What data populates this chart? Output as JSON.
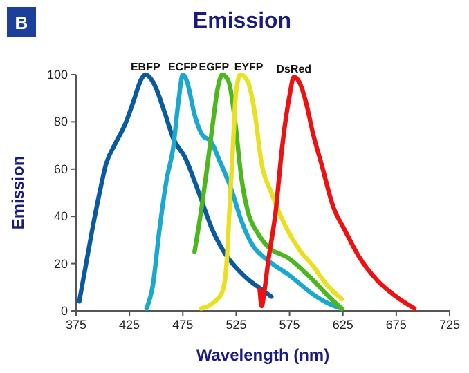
{
  "chart_data": {
    "type": "line",
    "title": "Emission",
    "xlabel": "Wavelength (nm)",
    "ylabel": "Emission",
    "annotations": [
      "B"
    ],
    "xlim": [
      375,
      725
    ],
    "xticks": [
      375,
      425,
      475,
      525,
      575,
      625,
      675,
      725
    ],
    "ylim": [
      0,
      100
    ],
    "yticks": [
      0,
      20,
      40,
      60,
      80,
      100
    ],
    "grid": false,
    "marker": "none",
    "line_style": "solid",
    "series": [
      {
        "name": "EBFP",
        "color": "#0a5aa0",
        "x": [
          378,
          384,
          390,
          397,
          403,
          412,
          421,
          429,
          436,
          440,
          447,
          458,
          466,
          477,
          490,
          503,
          515,
          532,
          549,
          558
        ],
        "values": [
          4,
          19,
          34,
          50,
          62,
          71,
          79,
          89,
          98,
          100,
          97,
          84,
          73,
          65,
          50,
          34,
          24,
          15,
          9,
          6
        ]
      },
      {
        "name": "ECFP",
        "color": "#1aa7d0",
        "x": [
          441,
          447,
          453,
          460,
          466,
          471,
          475,
          479,
          486,
          494,
          501,
          509,
          520,
          530,
          540,
          553,
          575,
          597,
          612,
          624
        ],
        "values": [
          1,
          11,
          34,
          56,
          69,
          89,
          100,
          97,
          83,
          74,
          72,
          64,
          52,
          38,
          28,
          22,
          15,
          7,
          3,
          1
        ]
      },
      {
        "name": "EGFP",
        "color": "#4cb81e",
        "x": [
          486,
          490,
          497,
          503,
          508,
          512,
          518,
          524,
          530,
          536,
          545,
          553,
          575,
          597,
          614,
          624
        ],
        "values": [
          25,
          36,
          58,
          79,
          95,
          100,
          97,
          80,
          56,
          42,
          33,
          28,
          22,
          13,
          5,
          1
        ]
      },
      {
        "name": "EYFP",
        "color": "#e8e020",
        "x": [
          492,
          505,
          512,
          516,
          519,
          522,
          525,
          529,
          536,
          542,
          549,
          558,
          571,
          584,
          597,
          610,
          624
        ],
        "values": [
          1,
          4,
          8,
          20,
          45,
          70,
          93,
          100,
          97,
          85,
          62,
          50,
          36,
          26,
          19,
          11,
          5
        ]
      },
      {
        "name": "DsRed",
        "color": "#ee1111",
        "x": [
          547,
          549,
          551,
          555,
          562,
          568,
          575,
          579,
          584,
          590,
          597,
          605,
          616,
          627,
          640,
          657,
          675,
          692
        ],
        "values": [
          9,
          2,
          7,
          21,
          42,
          69,
          91,
          99,
          97,
          89,
          75,
          62,
          44,
          34,
          23,
          13,
          6,
          1
        ]
      }
    ]
  }
}
